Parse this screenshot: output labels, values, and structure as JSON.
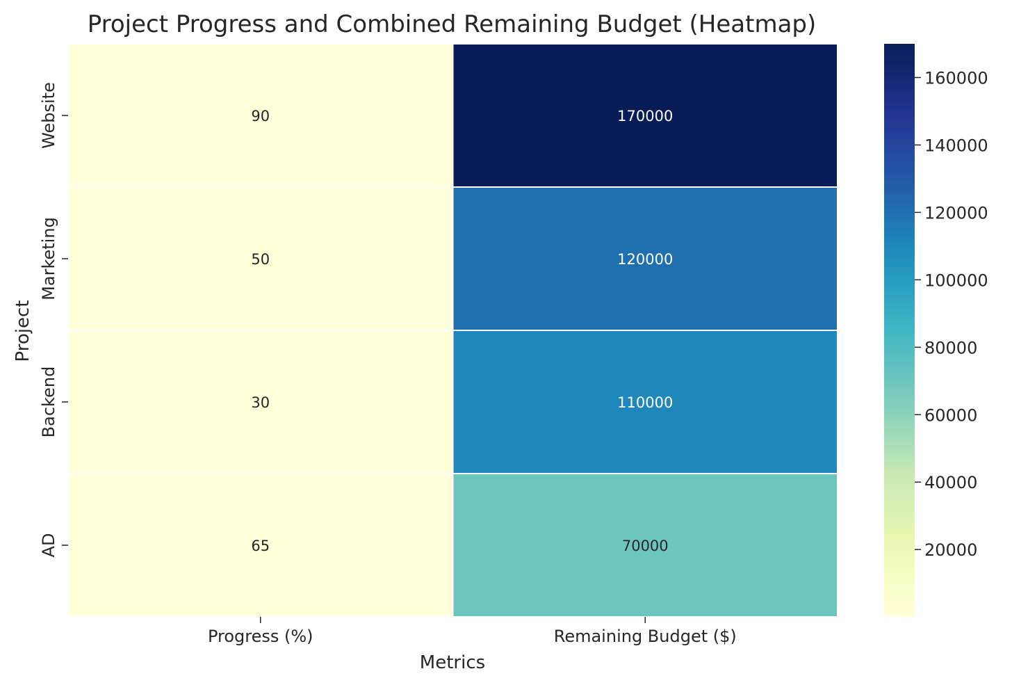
{
  "chart_data": {
    "type": "heatmap",
    "title": "Project Progress and Combined Remaining Budget (Heatmap)",
    "xlabel": "Metrics",
    "ylabel": "Project",
    "columns": [
      "Progress (%)",
      "Remaining Budget ($)"
    ],
    "rows": [
      "Website",
      "Marketing",
      "Backend",
      "AD"
    ],
    "values": [
      [
        90,
        170000
      ],
      [
        50,
        120000
      ],
      [
        30,
        110000
      ],
      [
        65,
        70000
      ]
    ],
    "cell_labels": [
      [
        "90",
        "170000"
      ],
      [
        "50",
        "120000"
      ],
      [
        "30",
        "110000"
      ],
      [
        "65",
        "70000"
      ]
    ],
    "colormap": "YlGnBu",
    "colorbar": {
      "vmin": 30,
      "vmax": 170000,
      "ticks": [
        20000,
        40000,
        60000,
        80000,
        100000,
        120000,
        140000,
        160000
      ],
      "tick_labels": [
        "20000",
        "40000",
        "60000",
        "80000",
        "100000",
        "120000",
        "140000",
        "160000"
      ]
    },
    "annotated": true,
    "grid": false
  }
}
